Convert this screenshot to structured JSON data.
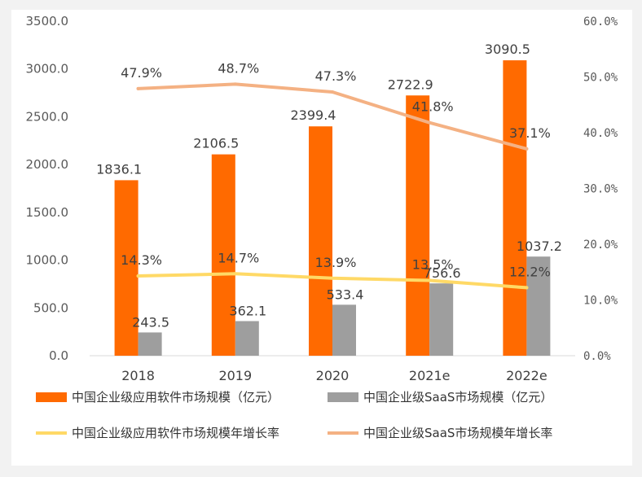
{
  "chart_data": {
    "type": "bar",
    "categories": [
      "2018",
      "2019",
      "2020",
      "2021e",
      "2022e"
    ],
    "series": [
      {
        "name": "中国企业级应用软件市场规模（亿元）",
        "kind": "bar",
        "axis": "left",
        "color": "#ff6a00",
        "values": [
          1836.1,
          2106.5,
          2399.4,
          2722.9,
          3090.5
        ],
        "labels": [
          "1836.1",
          "2106.5",
          "2399.4",
          "2722.9",
          "3090.5"
        ]
      },
      {
        "name": "中国企业级SaaS市场规模（亿元）",
        "kind": "bar",
        "axis": "left",
        "color": "#9e9e9e",
        "values": [
          243.5,
          362.1,
          533.4,
          756.6,
          1037.2
        ],
        "labels": [
          "243.5",
          "362.1",
          "533.4",
          "756.6",
          "1037.2"
        ]
      },
      {
        "name": "中国企业级应用软件市场规模年增长率",
        "kind": "line",
        "axis": "right",
        "color": "#ffd966",
        "values": [
          14.3,
          14.7,
          13.9,
          13.5,
          12.2
        ],
        "labels": [
          "14.3%",
          "14.7%",
          "13.9%",
          "13.5%",
          "12.2%"
        ]
      },
      {
        "name": "中国企业级SaaS市场规模年增长率",
        "kind": "line",
        "axis": "right",
        "color": "#f4b183",
        "values": [
          47.9,
          48.7,
          47.3,
          41.8,
          37.1
        ],
        "labels": [
          "47.9%",
          "48.7%",
          "47.3%",
          "41.8%",
          "37.1%"
        ]
      }
    ],
    "y_left": {
      "min": 0,
      "max": 3500,
      "ticks": [
        "0.0",
        "500.0",
        "1000.0",
        "1500.0",
        "2000.0",
        "2500.0",
        "3000.0",
        "3500.0"
      ]
    },
    "y_right": {
      "min": 0,
      "max": 60,
      "ticks": [
        "0.0%",
        "10.0%",
        "20.0%",
        "30.0%",
        "40.0%",
        "50.0%",
        "60.0%"
      ]
    },
    "grid": false,
    "legend_position": "bottom"
  }
}
